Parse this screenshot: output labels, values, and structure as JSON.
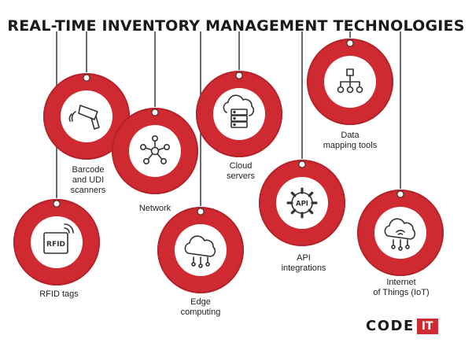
{
  "title": "REAL-TIME INVENTORY MANAGEMENT TECHNOLOGIES",
  "colors": {
    "accent": "#cf2a31",
    "ring_dark": "#b4232b",
    "line": "#2b2b2b",
    "icon": "#333333"
  },
  "nodes": [
    {
      "id": "barcode",
      "icon": "barcode-scanner-icon",
      "label": [
        "Barcode",
        "and UDI",
        "scanners"
      ]
    },
    {
      "id": "network",
      "icon": "network-icon",
      "label": [
        "Network"
      ]
    },
    {
      "id": "rfid",
      "icon": "rfid-tag-icon",
      "label": [
        "RFID tags"
      ]
    },
    {
      "id": "edge",
      "icon": "edge-cloud-icon",
      "label": [
        "Edge",
        "computing"
      ]
    },
    {
      "id": "cloud",
      "icon": "cloud-server-icon",
      "label": [
        "Cloud",
        "servers"
      ]
    },
    {
      "id": "api",
      "icon": "api-gear-icon",
      "label": [
        "API",
        "integrations"
      ]
    },
    {
      "id": "data",
      "icon": "data-mapping-icon",
      "label": [
        "Data",
        "mapping tools"
      ]
    },
    {
      "id": "iot",
      "icon": "iot-cloud-icon",
      "label": [
        "Internet",
        "of Things (IoT)"
      ]
    }
  ],
  "rfid_icon_text": "RFID",
  "api_icon_text": "API",
  "logo": {
    "part1": "CODE",
    "part2": "IT"
  }
}
